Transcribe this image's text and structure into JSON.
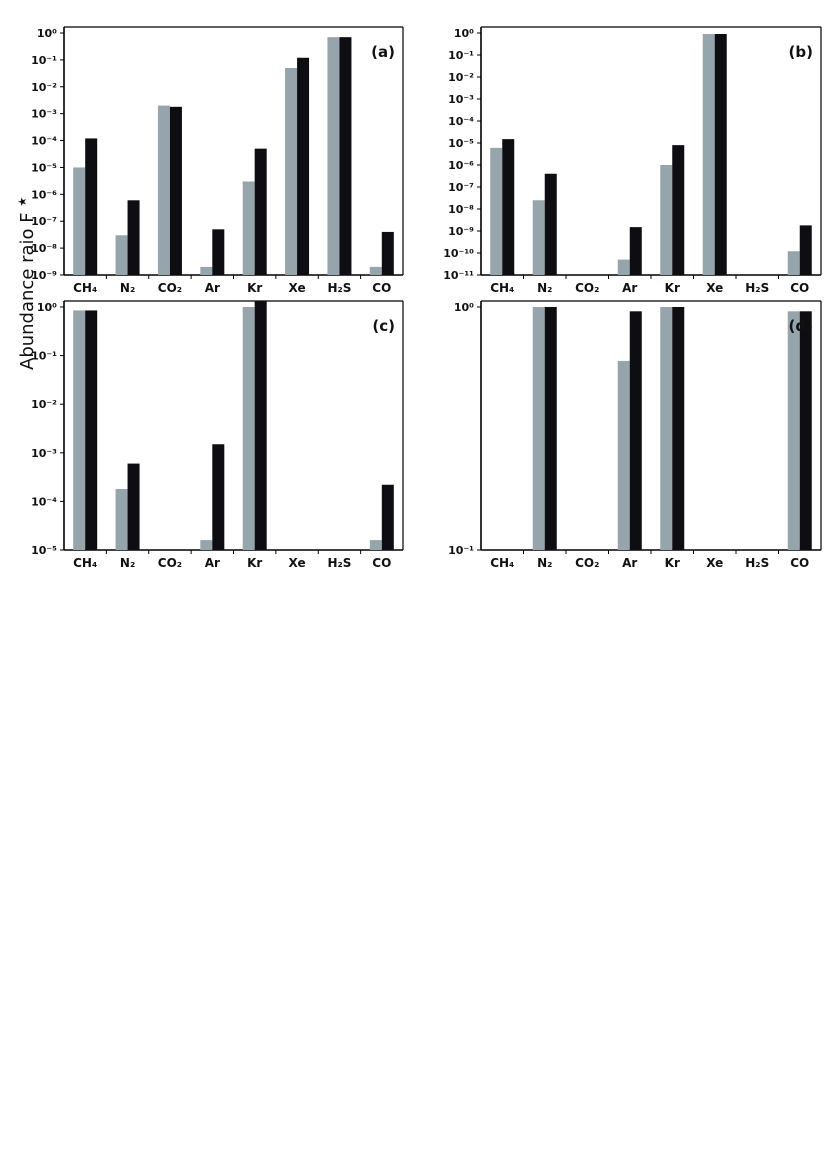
{
  "figure": {
    "ylabel": "Abundance raio F",
    "ylabel_sup": "★",
    "bar_colors": {
      "series_1": "#96a4ab",
      "series_2": "#0d0d12"
    }
  },
  "chart_data": [
    {
      "type": "bar",
      "panel_label": "(a)",
      "scale": "log",
      "ylim": [
        1e-09,
        1
      ],
      "ytick_exponents": [
        -9,
        -8,
        -7,
        -6,
        -5,
        -4,
        -3,
        -2,
        -1,
        0
      ],
      "categories": [
        "CH4",
        "N2",
        "CO2",
        "Ar",
        "Kr",
        "Xe",
        "H2S",
        "CO"
      ],
      "series": [
        {
          "values": [
            1e-05,
            3e-08,
            0.002,
            2e-09,
            3e-06,
            0.05,
            0.7,
            2e-09
          ]
        },
        {
          "values": [
            0.00012,
            6e-07,
            0.0018,
            5e-08,
            5e-05,
            0.12,
            0.7,
            4e-08
          ]
        }
      ]
    },
    {
      "type": "bar",
      "panel_label": "(b)",
      "scale": "log",
      "ylim": [
        1e-11,
        1
      ],
      "ytick_exponents": [
        -11,
        -10,
        -9,
        -8,
        -7,
        -6,
        -5,
        -4,
        -3,
        -2,
        -1,
        0
      ],
      "categories": [
        "CH4",
        "N2",
        "CO2",
        "Ar",
        "Kr",
        "Xe",
        "H2S",
        "CO"
      ],
      "series": [
        {
          "values": [
            6e-06,
            2.5e-08,
            null,
            5e-11,
            1e-06,
            0.9,
            null,
            1.2e-10
          ]
        },
        {
          "values": [
            1.5e-05,
            4e-07,
            null,
            1.5e-09,
            8e-06,
            0.9,
            null,
            1.8e-09
          ]
        }
      ]
    },
    {
      "type": "bar",
      "panel_label": "(c)",
      "scale": "log",
      "ylim": [
        1e-05,
        1
      ],
      "ytick_exponents": [
        -5,
        -4,
        -3,
        -2,
        -1,
        0
      ],
      "categories": [
        "CH4",
        "N2",
        "CO2",
        "Ar",
        "Kr",
        "Xe",
        "H2S",
        "CO"
      ],
      "series": [
        {
          "values": [
            0.85,
            0.00018,
            null,
            1.6e-05,
            1.0,
            null,
            null,
            1.6e-05
          ]
        },
        {
          "values": [
            0.85,
            0.0006,
            null,
            0.0015,
            1.5,
            null,
            null,
            0.00022
          ]
        }
      ]
    },
    {
      "type": "bar",
      "panel_label": "(d)",
      "scale": "log",
      "ylim": [
        0.1,
        1
      ],
      "ytick_exponents": [
        -1,
        0
      ],
      "categories": [
        "CH4",
        "N2",
        "CO2",
        "Ar",
        "Kr",
        "Xe",
        "H2S",
        "CO"
      ],
      "series": [
        {
          "values": [
            null,
            1.0,
            null,
            0.6,
            1.0,
            null,
            null,
            0.96
          ]
        },
        {
          "values": [
            null,
            1.0,
            null,
            0.96,
            1.0,
            null,
            null,
            0.96
          ]
        }
      ]
    }
  ]
}
